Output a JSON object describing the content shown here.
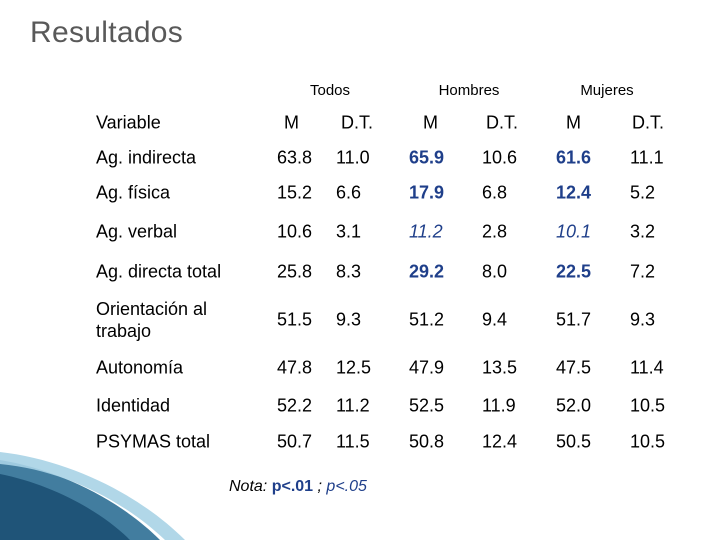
{
  "slide": {
    "title": "Resultados",
    "groups": [
      "Todos",
      "Hombres",
      "Mujeres"
    ],
    "column_headers": [
      "Variable",
      "M",
      "D.T.",
      "M",
      "D.T.",
      "M",
      "D.T."
    ],
    "rows": [
      {
        "label": "Ag. indirecta",
        "values": [
          "63.8",
          "11.0",
          "65.9",
          "10.6",
          "61.6",
          "11.1"
        ],
        "styles": [
          "",
          "",
          "bold",
          "",
          "bold",
          ""
        ]
      },
      {
        "label": "Ag. física",
        "values": [
          "15.2",
          "6.6",
          "17.9",
          "6.8",
          "12.4",
          "5.2"
        ],
        "styles": [
          "",
          "",
          "bold",
          "",
          "bold",
          ""
        ]
      },
      {
        "label": "Ag. verbal",
        "values": [
          "10.6",
          "3.1",
          "11.2",
          "2.8",
          "10.1",
          "3.2"
        ],
        "styles": [
          "",
          "",
          "italic",
          "",
          "italic",
          ""
        ]
      },
      {
        "label": "Ag. directa total",
        "values": [
          "25.8",
          "8.3",
          "29.2",
          "8.0",
          "22.5",
          "7.2"
        ],
        "styles": [
          "",
          "",
          "bold",
          "",
          "bold",
          ""
        ]
      },
      {
        "label": "Orientación al trabajo",
        "values": [
          "51.5",
          "9.3",
          "51.2",
          "9.4",
          "51.7",
          "9.3"
        ],
        "styles": [
          "",
          "",
          "",
          "",
          "",
          ""
        ]
      },
      {
        "label": "Autonomía",
        "values": [
          "47.8",
          "12.5",
          "47.9",
          "13.5",
          "47.5",
          "11.4"
        ],
        "styles": [
          "",
          "",
          "",
          "",
          "",
          ""
        ]
      },
      {
        "label": "Identidad",
        "values": [
          "52.2",
          "11.2",
          "52.5",
          "11.9",
          "52.0",
          "10.5"
        ],
        "styles": [
          "",
          "",
          "",
          "",
          "",
          ""
        ]
      },
      {
        "label": "PSYMAS total",
        "values": [
          "50.7",
          "11.5",
          "50.8",
          "12.4",
          "50.5",
          "10.5"
        ],
        "styles": [
          "",
          "",
          "",
          "",
          "",
          ""
        ]
      }
    ],
    "note": {
      "prefix": "Nota:",
      "bold_part": "p<.01",
      "separator": ";",
      "italic_part": "p<.05"
    },
    "colors": {
      "title": "#595959",
      "highlight": "#1f3f8a",
      "deco_dark": "#2e6f95",
      "deco_light": "#a9d3e6"
    }
  }
}
